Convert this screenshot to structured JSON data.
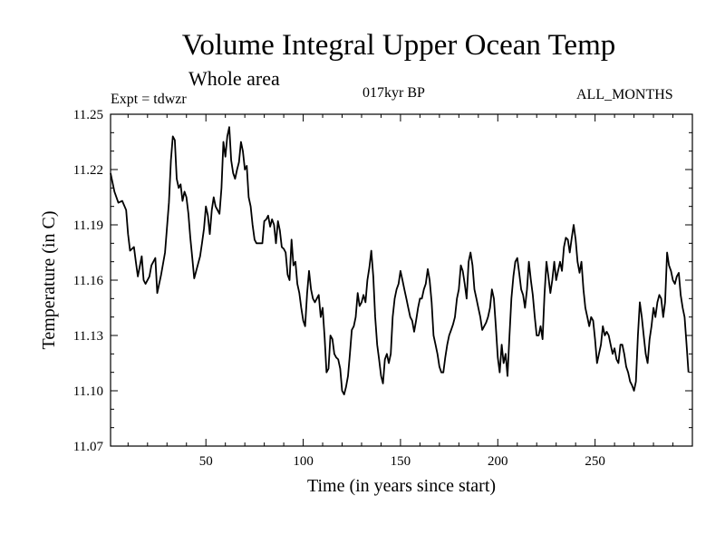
{
  "chart_data": {
    "type": "line",
    "title": "Volume Integral Upper Ocean Temp",
    "subtitle": "Whole area",
    "experiment": "Expt = tdwzr",
    "period": "017kyr BP",
    "months": "ALL_MONTHS",
    "xlabel": "Time (in years since start)",
    "ylabel": "Temperature (in C)",
    "xlim": [
      1,
      300
    ],
    "ylim": [
      11.07,
      11.25
    ],
    "xticks": [
      50,
      100,
      150,
      200,
      250
    ],
    "xtick_labels": [
      "50",
      "100",
      "150",
      "200",
      "250"
    ],
    "yticks": [
      11.07,
      11.1,
      11.13,
      11.16,
      11.19,
      11.22,
      11.25
    ],
    "ytick_labels": [
      "11.07",
      "11.10",
      "11.13",
      "11.16",
      "11.19",
      "11.22",
      "11.25"
    ],
    "grid": false,
    "series": [
      {
        "color": "#000000",
        "points": [
          [
            1,
            11.218
          ],
          [
            3,
            11.208
          ],
          [
            5,
            11.202
          ],
          [
            7,
            11.203
          ],
          [
            9,
            11.198
          ],
          [
            10,
            11.185
          ],
          [
            11,
            11.176
          ],
          [
            13,
            11.178
          ],
          [
            14,
            11.17
          ],
          [
            15,
            11.162
          ],
          [
            17,
            11.173
          ],
          [
            18,
            11.16
          ],
          [
            19,
            11.158
          ],
          [
            21,
            11.162
          ],
          [
            22,
            11.168
          ],
          [
            24,
            11.172
          ],
          [
            25,
            11.153
          ],
          [
            27,
            11.163
          ],
          [
            29,
            11.175
          ],
          [
            31,
            11.202
          ],
          [
            32,
            11.225
          ],
          [
            33,
            11.238
          ],
          [
            34,
            11.236
          ],
          [
            35,
            11.215
          ],
          [
            36,
            11.21
          ],
          [
            37,
            11.212
          ],
          [
            38,
            11.203
          ],
          [
            39,
            11.208
          ],
          [
            40,
            11.205
          ],
          [
            41,
            11.196
          ],
          [
            42,
            11.183
          ],
          [
            43,
            11.172
          ],
          [
            44,
            11.161
          ],
          [
            45,
            11.165
          ],
          [
            47,
            11.173
          ],
          [
            48,
            11.18
          ],
          [
            49,
            11.188
          ],
          [
            50,
            11.2
          ],
          [
            51,
            11.195
          ],
          [
            52,
            11.185
          ],
          [
            53,
            11.198
          ],
          [
            54,
            11.205
          ],
          [
            55,
            11.2
          ],
          [
            57,
            11.196
          ],
          [
            58,
            11.21
          ],
          [
            59,
            11.235
          ],
          [
            60,
            11.227
          ],
          [
            61,
            11.238
          ],
          [
            62,
            11.243
          ],
          [
            63,
            11.225
          ],
          [
            64,
            11.218
          ],
          [
            65,
            11.215
          ],
          [
            66,
            11.22
          ],
          [
            67,
            11.224
          ],
          [
            68,
            11.235
          ],
          [
            69,
            11.23
          ],
          [
            70,
            11.22
          ],
          [
            71,
            11.222
          ],
          [
            72,
            11.205
          ],
          [
            73,
            11.2
          ],
          [
            74,
            11.19
          ],
          [
            75,
            11.182
          ],
          [
            76,
            11.18
          ],
          [
            78,
            11.18
          ],
          [
            79,
            11.18
          ],
          [
            80,
            11.192
          ],
          [
            81,
            11.193
          ],
          [
            82,
            11.195
          ],
          [
            83,
            11.189
          ],
          [
            84,
            11.193
          ],
          [
            85,
            11.19
          ],
          [
            86,
            11.18
          ],
          [
            87,
            11.192
          ],
          [
            88,
            11.187
          ],
          [
            89,
            11.178
          ],
          [
            90,
            11.177
          ],
          [
            91,
            11.175
          ],
          [
            92,
            11.163
          ],
          [
            93,
            11.16
          ],
          [
            94,
            11.182
          ],
          [
            95,
            11.168
          ],
          [
            96,
            11.17
          ],
          [
            97,
            11.158
          ],
          [
            98,
            11.153
          ],
          [
            99,
            11.145
          ],
          [
            100,
            11.138
          ],
          [
            101,
            11.135
          ],
          [
            102,
            11.153
          ],
          [
            103,
            11.165
          ],
          [
            104,
            11.155
          ],
          [
            105,
            11.15
          ],
          [
            106,
            11.148
          ],
          [
            107,
            11.15
          ],
          [
            108,
            11.152
          ],
          [
            109,
            11.14
          ],
          [
            110,
            11.145
          ],
          [
            111,
            11.129
          ],
          [
            112,
            11.11
          ],
          [
            113,
            11.112
          ],
          [
            114,
            11.13
          ],
          [
            115,
            11.128
          ],
          [
            116,
            11.12
          ],
          [
            117,
            11.118
          ],
          [
            118,
            11.117
          ],
          [
            119,
            11.112
          ],
          [
            120,
            11.1
          ],
          [
            121,
            11.098
          ],
          [
            122,
            11.102
          ],
          [
            123,
            11.108
          ],
          [
            124,
            11.12
          ],
          [
            125,
            11.133
          ],
          [
            126,
            11.135
          ],
          [
            127,
            11.14
          ],
          [
            128,
            11.153
          ],
          [
            129,
            11.146
          ],
          [
            130,
            11.148
          ],
          [
            131,
            11.152
          ],
          [
            132,
            11.148
          ],
          [
            133,
            11.16
          ],
          [
            134,
            11.167
          ],
          [
            135,
            11.176
          ],
          [
            136,
            11.162
          ],
          [
            137,
            11.14
          ],
          [
            138,
            11.125
          ],
          [
            139,
            11.117
          ],
          [
            140,
            11.108
          ],
          [
            141,
            11.104
          ],
          [
            142,
            11.117
          ],
          [
            143,
            11.12
          ],
          [
            144,
            11.115
          ],
          [
            145,
            11.12
          ],
          [
            146,
            11.14
          ],
          [
            147,
            11.15
          ],
          [
            148,
            11.155
          ],
          [
            149,
            11.158
          ],
          [
            150,
            11.165
          ],
          [
            151,
            11.16
          ],
          [
            152,
            11.155
          ],
          [
            153,
            11.15
          ],
          [
            154,
            11.145
          ],
          [
            155,
            11.14
          ],
          [
            156,
            11.138
          ],
          [
            157,
            11.132
          ],
          [
            158,
            11.138
          ],
          [
            159,
            11.145
          ],
          [
            160,
            11.15
          ],
          [
            161,
            11.15
          ],
          [
            162,
            11.155
          ],
          [
            163,
            11.158
          ],
          [
            164,
            11.166
          ],
          [
            165,
            11.16
          ],
          [
            166,
            11.148
          ],
          [
            167,
            11.13
          ],
          [
            168,
            11.125
          ],
          [
            169,
            11.12
          ],
          [
            170,
            11.113
          ],
          [
            171,
            11.11
          ],
          [
            172,
            11.11
          ],
          [
            173,
            11.118
          ],
          [
            174,
            11.125
          ],
          [
            175,
            11.13
          ],
          [
            176,
            11.133
          ],
          [
            177,
            11.136
          ],
          [
            178,
            11.14
          ],
          [
            179,
            11.15
          ],
          [
            180,
            11.155
          ],
          [
            181,
            11.168
          ],
          [
            182,
            11.165
          ],
          [
            183,
            11.158
          ],
          [
            184,
            11.15
          ],
          [
            185,
            11.17
          ],
          [
            186,
            11.175
          ],
          [
            187,
            11.168
          ],
          [
            188,
            11.155
          ],
          [
            189,
            11.15
          ],
          [
            190,
            11.145
          ],
          [
            191,
            11.14
          ],
          [
            192,
            11.133
          ],
          [
            193,
            11.135
          ],
          [
            194,
            11.137
          ],
          [
            195,
            11.14
          ],
          [
            196,
            11.145
          ],
          [
            197,
            11.155
          ],
          [
            198,
            11.15
          ],
          [
            199,
            11.135
          ],
          [
            200,
            11.118
          ],
          [
            201,
            11.11
          ],
          [
            202,
            11.125
          ],
          [
            203,
            11.115
          ],
          [
            204,
            11.12
          ],
          [
            205,
            11.108
          ],
          [
            206,
            11.13
          ],
          [
            207,
            11.15
          ],
          [
            208,
            11.162
          ],
          [
            209,
            11.17
          ],
          [
            210,
            11.172
          ],
          [
            211,
            11.164
          ],
          [
            212,
            11.155
          ],
          [
            213,
            11.152
          ],
          [
            214,
            11.145
          ],
          [
            215,
            11.155
          ],
          [
            216,
            11.17
          ],
          [
            217,
            11.16
          ],
          [
            218,
            11.152
          ],
          [
            219,
            11.14
          ],
          [
            220,
            11.13
          ],
          [
            221,
            11.13
          ],
          [
            222,
            11.135
          ],
          [
            223,
            11.128
          ],
          [
            224,
            11.152
          ],
          [
            225,
            11.17
          ],
          [
            226,
            11.162
          ],
          [
            227,
            11.153
          ],
          [
            228,
            11.16
          ],
          [
            229,
            11.17
          ],
          [
            230,
            11.16
          ],
          [
            231,
            11.165
          ],
          [
            232,
            11.17
          ],
          [
            233,
            11.165
          ],
          [
            234,
            11.178
          ],
          [
            235,
            11.183
          ],
          [
            236,
            11.182
          ],
          [
            237,
            11.175
          ],
          [
            238,
            11.183
          ],
          [
            239,
            11.19
          ],
          [
            240,
            11.182
          ],
          [
            241,
            11.17
          ],
          [
            242,
            11.164
          ],
          [
            243,
            11.17
          ],
          [
            244,
            11.155
          ],
          [
            245,
            11.145
          ],
          [
            246,
            11.14
          ],
          [
            247,
            11.135
          ],
          [
            248,
            11.14
          ],
          [
            249,
            11.138
          ],
          [
            250,
            11.128
          ],
          [
            251,
            11.115
          ],
          [
            252,
            11.12
          ],
          [
            253,
            11.125
          ],
          [
            254,
            11.135
          ],
          [
            255,
            11.13
          ],
          [
            256,
            11.132
          ],
          [
            257,
            11.13
          ],
          [
            258,
            11.125
          ],
          [
            259,
            11.12
          ],
          [
            260,
            11.123
          ],
          [
            261,
            11.117
          ],
          [
            262,
            11.115
          ],
          [
            263,
            11.125
          ],
          [
            264,
            11.125
          ],
          [
            265,
            11.12
          ],
          [
            266,
            11.113
          ],
          [
            267,
            11.11
          ],
          [
            268,
            11.105
          ],
          [
            269,
            11.103
          ],
          [
            270,
            11.1
          ],
          [
            271,
            11.105
          ],
          [
            272,
            11.13
          ],
          [
            273,
            11.148
          ],
          [
            274,
            11.14
          ],
          [
            275,
            11.13
          ],
          [
            276,
            11.12
          ],
          [
            277,
            11.115
          ],
          [
            278,
            11.128
          ],
          [
            279,
            11.135
          ],
          [
            280,
            11.145
          ],
          [
            281,
            11.14
          ],
          [
            282,
            11.148
          ],
          [
            283,
            11.152
          ],
          [
            284,
            11.15
          ],
          [
            285,
            11.14
          ],
          [
            286,
            11.148
          ],
          [
            287,
            11.175
          ],
          [
            288,
            11.168
          ],
          [
            289,
            11.165
          ],
          [
            290,
            11.16
          ],
          [
            291,
            11.158
          ],
          [
            292,
            11.162
          ],
          [
            293,
            11.164
          ],
          [
            294,
            11.152
          ],
          [
            295,
            11.145
          ],
          [
            296,
            11.14
          ],
          [
            297,
            11.125
          ],
          [
            298,
            11.11
          ]
        ]
      }
    ]
  }
}
